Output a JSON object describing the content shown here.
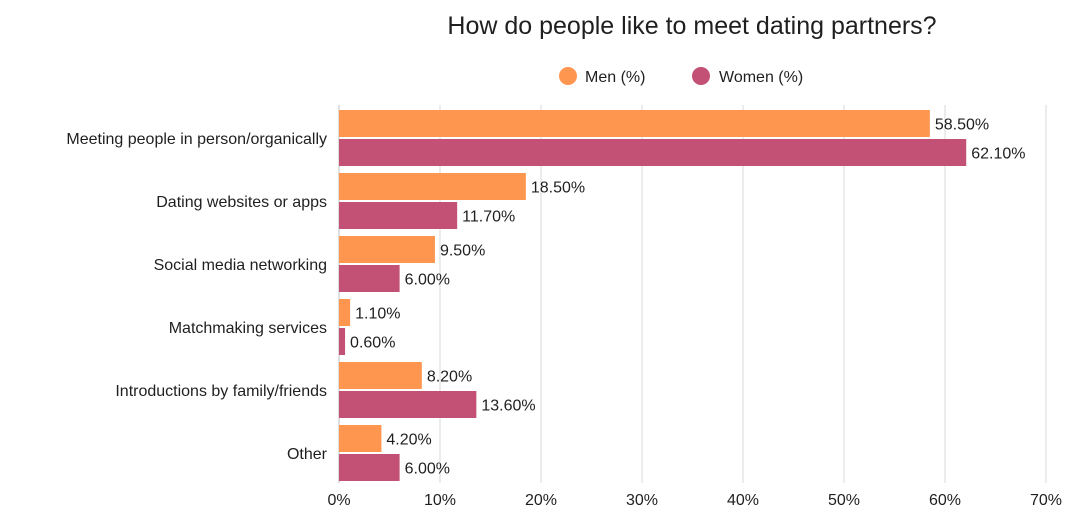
{
  "chart_data": {
    "type": "bar",
    "orientation": "horizontal",
    "title": "How do people like to meet dating partners?",
    "xlabel": "",
    "ylabel": "",
    "categories": [
      "Meeting people in person/organically",
      "Dating websites or apps",
      "Social media networking",
      "Matchmaking services",
      "Introductions by family/friends",
      "Other"
    ],
    "series": [
      {
        "name": "Men (%)",
        "color": "#FF9650",
        "values": [
          58.5,
          18.5,
          9.5,
          1.1,
          8.2,
          4.2
        ],
        "labels": [
          "58.50%",
          "18.50%",
          "9.50%",
          "1.10%",
          "8.20%",
          "4.20%"
        ]
      },
      {
        "name": "Women (%)",
        "color": "#C35075",
        "values": [
          62.1,
          11.7,
          6.0,
          0.6,
          13.6,
          6.0
        ],
        "labels": [
          "62.10%",
          "11.70%",
          "6.00%",
          "0.60%",
          "13.60%",
          "6.00%"
        ]
      }
    ],
    "xlim": [
      0,
      70
    ],
    "xticks": [
      0,
      10,
      20,
      30,
      40,
      50,
      60,
      70
    ],
    "xtick_labels": [
      "0%",
      "10%",
      "20%",
      "30%",
      "40%",
      "50%",
      "60%",
      "70%"
    ],
    "grid": true,
    "legend_position": "top"
  }
}
